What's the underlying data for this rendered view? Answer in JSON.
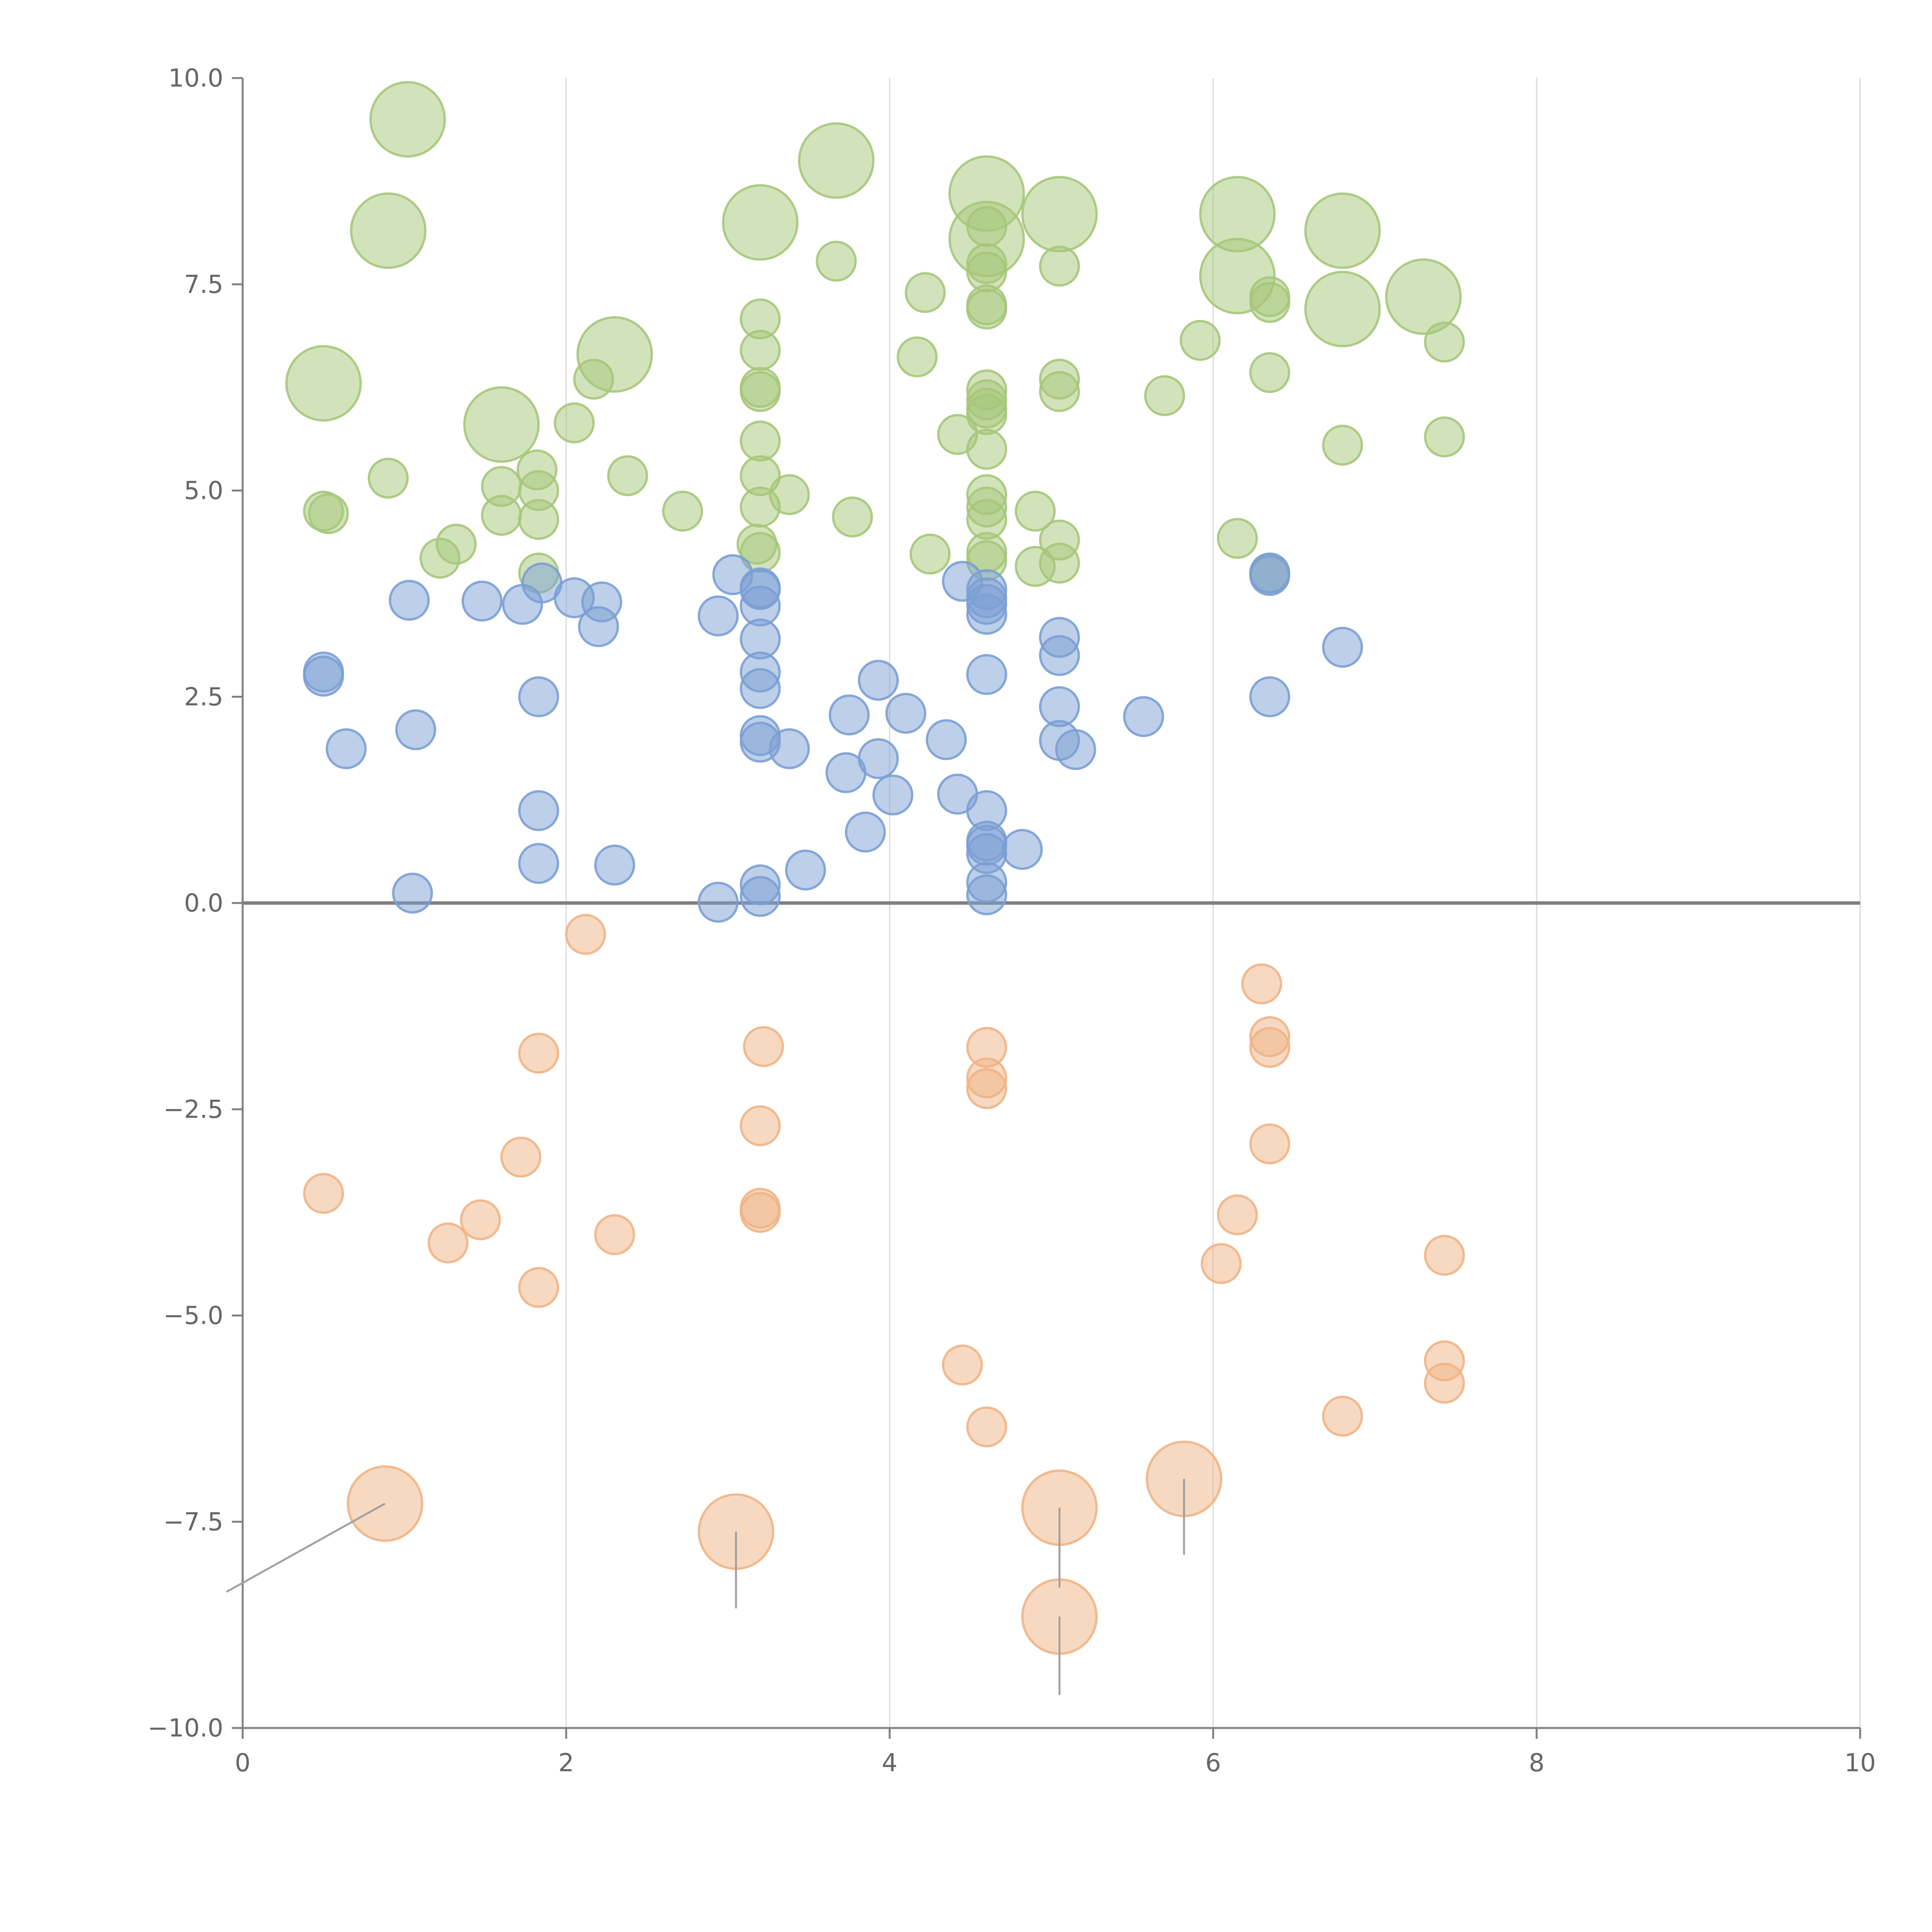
{
  "chart_data": {
    "type": "scatter",
    "title": "",
    "xlabel": "",
    "ylabel": "",
    "xlim": [
      0,
      10
    ],
    "ylim": [
      -10,
      10
    ],
    "x_ticks": [
      0,
      2,
      4,
      6,
      8,
      10
    ],
    "y_ticks": [
      -10,
      -7.5,
      -5,
      -2.5,
      0,
      2.5,
      5,
      7.5,
      10
    ],
    "x_tick_labels": [
      "0",
      "2",
      "4",
      "6",
      "8",
      "10"
    ],
    "y_tick_labels": [
      "−10.0",
      "−7.5",
      "−5.0",
      "−2.5",
      "0.0",
      "2.5",
      "5.0",
      "7.5",
      "10.0"
    ],
    "grid": "vertical",
    "reference_line_y": 0,
    "series": [
      {
        "color": "#a6c77a",
        "points": [
          {
            "x": 1.02,
            "y": 9.5,
            "size": "large"
          },
          {
            "x": 0.9,
            "y": 8.15,
            "size": "large"
          },
          {
            "x": 0.5,
            "y": 6.3,
            "size": "large"
          },
          {
            "x": 1.6,
            "y": 5.8,
            "size": "large"
          },
          {
            "x": 2.3,
            "y": 6.65,
            "size": "large"
          },
          {
            "x": 3.2,
            "y": 8.25,
            "size": "large"
          },
          {
            "x": 3.67,
            "y": 9.0,
            "size": "large"
          },
          {
            "x": 4.6,
            "y": 8.6,
            "size": "large"
          },
          {
            "x": 4.6,
            "y": 8.05,
            "size": "large"
          },
          {
            "x": 5.05,
            "y": 8.35,
            "size": "large"
          },
          {
            "x": 6.15,
            "y": 8.35,
            "size": "large"
          },
          {
            "x": 6.15,
            "y": 7.6,
            "size": "large"
          },
          {
            "x": 6.8,
            "y": 8.15,
            "size": "large"
          },
          {
            "x": 6.8,
            "y": 7.2,
            "size": "large"
          },
          {
            "x": 7.3,
            "y": 7.35,
            "size": "large"
          },
          {
            "x": 0.5,
            "y": 4.75
          },
          {
            "x": 0.53,
            "y": 4.72
          },
          {
            "x": 0.9,
            "y": 5.15
          },
          {
            "x": 1.22,
            "y": 4.18
          },
          {
            "x": 1.32,
            "y": 4.35
          },
          {
            "x": 1.6,
            "y": 5.05
          },
          {
            "x": 1.6,
            "y": 4.7
          },
          {
            "x": 1.82,
            "y": 5.25
          },
          {
            "x": 1.83,
            "y": 5.0
          },
          {
            "x": 1.83,
            "y": 4.65
          },
          {
            "x": 1.83,
            "y": 4.0
          },
          {
            "x": 2.05,
            "y": 5.82
          },
          {
            "x": 2.17,
            "y": 6.35
          },
          {
            "x": 2.38,
            "y": 5.18
          },
          {
            "x": 2.72,
            "y": 4.75
          },
          {
            "x": 3.2,
            "y": 7.08
          },
          {
            "x": 3.2,
            "y": 6.7
          },
          {
            "x": 3.2,
            "y": 6.25
          },
          {
            "x": 3.2,
            "y": 6.2
          },
          {
            "x": 3.2,
            "y": 5.6
          },
          {
            "x": 3.2,
            "y": 5.18
          },
          {
            "x": 3.2,
            "y": 4.8
          },
          {
            "x": 3.18,
            "y": 4.35
          },
          {
            "x": 3.2,
            "y": 4.25
          },
          {
            "x": 3.38,
            "y": 4.95
          },
          {
            "x": 3.67,
            "y": 7.78
          },
          {
            "x": 3.77,
            "y": 4.68
          },
          {
            "x": 4.17,
            "y": 6.62
          },
          {
            "x": 4.22,
            "y": 7.4
          },
          {
            "x": 4.25,
            "y": 4.23
          },
          {
            "x": 4.42,
            "y": 5.68
          },
          {
            "x": 4.6,
            "y": 8.2
          },
          {
            "x": 4.6,
            "y": 7.75
          },
          {
            "x": 4.6,
            "y": 7.65
          },
          {
            "x": 4.6,
            "y": 7.25
          },
          {
            "x": 4.6,
            "y": 7.2
          },
          {
            "x": 4.6,
            "y": 6.22
          },
          {
            "x": 4.6,
            "y": 6.1
          },
          {
            "x": 4.6,
            "y": 6.0
          },
          {
            "x": 4.6,
            "y": 5.92
          },
          {
            "x": 4.6,
            "y": 5.5
          },
          {
            "x": 4.6,
            "y": 4.95
          },
          {
            "x": 4.6,
            "y": 4.8
          },
          {
            "x": 4.6,
            "y": 4.65
          },
          {
            "x": 4.6,
            "y": 4.25
          },
          {
            "x": 4.6,
            "y": 4.15
          },
          {
            "x": 4.9,
            "y": 4.75
          },
          {
            "x": 4.9,
            "y": 4.08
          },
          {
            "x": 5.05,
            "y": 7.72
          },
          {
            "x": 5.05,
            "y": 6.35
          },
          {
            "x": 5.05,
            "y": 6.2
          },
          {
            "x": 5.05,
            "y": 4.4
          },
          {
            "x": 5.05,
            "y": 4.12
          },
          {
            "x": 5.7,
            "y": 6.15
          },
          {
            "x": 5.92,
            "y": 6.82
          },
          {
            "x": 6.15,
            "y": 4.42
          },
          {
            "x": 6.35,
            "y": 7.35
          },
          {
            "x": 6.35,
            "y": 7.28
          },
          {
            "x": 6.35,
            "y": 6.43
          },
          {
            "x": 6.35,
            "y": 4.0
          },
          {
            "x": 6.8,
            "y": 5.55
          },
          {
            "x": 7.43,
            "y": 6.8
          },
          {
            "x": 7.43,
            "y": 5.65
          }
        ]
      },
      {
        "color": "#7b9fd4",
        "points": [
          {
            "x": 1.03,
            "y": 3.67
          },
          {
            "x": 1.48,
            "y": 3.66
          },
          {
            "x": 1.73,
            "y": 3.62
          },
          {
            "x": 1.85,
            "y": 3.88
          },
          {
            "x": 2.05,
            "y": 3.7
          },
          {
            "x": 2.22,
            "y": 3.65
          },
          {
            "x": 2.2,
            "y": 3.35
          },
          {
            "x": 0.5,
            "y": 2.8
          },
          {
            "x": 0.5,
            "y": 2.75
          },
          {
            "x": 0.64,
            "y": 1.87
          },
          {
            "x": 1.07,
            "y": 2.1
          },
          {
            "x": 1.83,
            "y": 2.5
          },
          {
            "x": 1.83,
            "y": 1.12
          },
          {
            "x": 1.83,
            "y": 0.48
          },
          {
            "x": 1.05,
            "y": 0.12
          },
          {
            "x": 2.3,
            "y": 0.46
          },
          {
            "x": 2.94,
            "y": 3.48
          },
          {
            "x": 3.03,
            "y": 3.98
          },
          {
            "x": 3.2,
            "y": 3.82
          },
          {
            "x": 3.2,
            "y": 3.8
          },
          {
            "x": 3.2,
            "y": 3.6
          },
          {
            "x": 3.2,
            "y": 3.2
          },
          {
            "x": 3.2,
            "y": 2.8
          },
          {
            "x": 3.2,
            "y": 2.6
          },
          {
            "x": 3.2,
            "y": 2.03
          },
          {
            "x": 3.2,
            "y": 1.95
          },
          {
            "x": 3.38,
            "y": 1.87
          },
          {
            "x": 3.48,
            "y": 0.4
          },
          {
            "x": 3.2,
            "y": 0.22
          },
          {
            "x": 3.2,
            "y": 0.08
          },
          {
            "x": 2.94,
            "y": 0.01
          },
          {
            "x": 3.73,
            "y": 1.58
          },
          {
            "x": 3.75,
            "y": 2.28
          },
          {
            "x": 3.85,
            "y": 0.86
          },
          {
            "x": 3.93,
            "y": 2.7
          },
          {
            "x": 3.93,
            "y": 1.75
          },
          {
            "x": 4.02,
            "y": 1.31
          },
          {
            "x": 4.1,
            "y": 2.3
          },
          {
            "x": 4.35,
            "y": 1.98
          },
          {
            "x": 4.45,
            "y": 3.9
          },
          {
            "x": 4.42,
            "y": 1.32
          },
          {
            "x": 4.6,
            "y": 3.8
          },
          {
            "x": 4.6,
            "y": 3.7
          },
          {
            "x": 4.6,
            "y": 3.62
          },
          {
            "x": 4.6,
            "y": 3.5
          },
          {
            "x": 4.6,
            "y": 2.77
          },
          {
            "x": 4.6,
            "y": 1.12
          },
          {
            "x": 4.6,
            "y": 0.75
          },
          {
            "x": 4.6,
            "y": 0.7
          },
          {
            "x": 4.6,
            "y": 0.6
          },
          {
            "x": 4.6,
            "y": 0.25
          },
          {
            "x": 4.6,
            "y": 0.1
          },
          {
            "x": 4.82,
            "y": 0.65
          },
          {
            "x": 5.05,
            "y": 3.22
          },
          {
            "x": 5.05,
            "y": 3.0
          },
          {
            "x": 5.05,
            "y": 2.38
          },
          {
            "x": 5.05,
            "y": 1.97
          },
          {
            "x": 5.15,
            "y": 1.86
          },
          {
            "x": 5.57,
            "y": 2.26
          },
          {
            "x": 6.35,
            "y": 4.0
          },
          {
            "x": 6.35,
            "y": 3.97
          },
          {
            "x": 6.35,
            "y": 2.5
          },
          {
            "x": 6.8,
            "y": 3.1
          }
        ]
      },
      {
        "color": "#efb485",
        "points": [
          {
            "x": 2.12,
            "y": -0.38
          },
          {
            "x": 1.83,
            "y": -1.82
          },
          {
            "x": 1.72,
            "y": -3.08
          },
          {
            "x": 0.5,
            "y": -3.52
          },
          {
            "x": 1.27,
            "y": -4.12
          },
          {
            "x": 1.47,
            "y": -3.84
          },
          {
            "x": 2.3,
            "y": -4.02
          },
          {
            "x": 1.83,
            "y": -4.66
          },
          {
            "x": 3.22,
            "y": -1.74
          },
          {
            "x": 3.2,
            "y": -2.7
          },
          {
            "x": 3.2,
            "y": -3.7
          },
          {
            "x": 3.2,
            "y": -3.75
          },
          {
            "x": 4.6,
            "y": -1.75
          },
          {
            "x": 4.6,
            "y": -2.12
          },
          {
            "x": 4.6,
            "y": -2.25
          },
          {
            "x": 4.45,
            "y": -5.6
          },
          {
            "x": 4.6,
            "y": -6.35
          },
          {
            "x": 6.3,
            "y": -0.98
          },
          {
            "x": 6.35,
            "y": -1.62
          },
          {
            "x": 6.35,
            "y": -1.75
          },
          {
            "x": 6.35,
            "y": -2.92
          },
          {
            "x": 6.15,
            "y": -3.78
          },
          {
            "x": 6.05,
            "y": -4.37
          },
          {
            "x": 6.8,
            "y": -6.22
          },
          {
            "x": 7.43,
            "y": -4.27
          },
          {
            "x": 7.43,
            "y": -5.55
          },
          {
            "x": 7.43,
            "y": -5.82
          },
          {
            "x": 0.88,
            "y": -7.28,
            "size": "large"
          },
          {
            "x": 3.05,
            "y": -7.62,
            "size": "large"
          },
          {
            "x": 5.05,
            "y": -7.33,
            "size": "large"
          },
          {
            "x": 5.05,
            "y": -8.65,
            "size": "large"
          },
          {
            "x": 5.82,
            "y": -6.98,
            "size": "large"
          }
        ],
        "callouts": [
          {
            "x": 0.88,
            "y": -7.28,
            "to_x": -0.1,
            "to_y": -8.35
          },
          {
            "x": 3.05,
            "y": -7.62,
            "to_x": 3.05,
            "to_y": -8.55
          },
          {
            "x": 5.05,
            "y": -7.33,
            "to_x": 5.05,
            "to_y": -8.3
          },
          {
            "x": 5.05,
            "y": -8.65,
            "to_x": 5.05,
            "to_y": -9.6
          },
          {
            "x": 5.82,
            "y": -6.98,
            "to_x": 5.82,
            "to_y": -7.9
          }
        ]
      }
    ]
  }
}
